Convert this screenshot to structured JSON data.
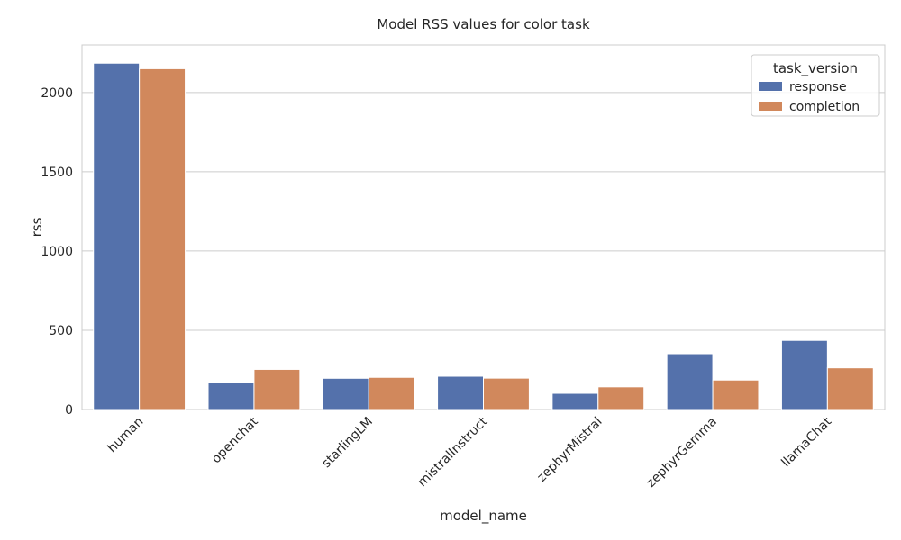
{
  "chart_data": {
    "type": "bar",
    "title": "Model RSS values for color task",
    "xlabel": "model_name",
    "ylabel": "rss",
    "categories": [
      "human",
      "openchat",
      "starlingLM",
      "mistralInstruct",
      "zephyrMistral",
      "zephyrGemma",
      "llamaChat"
    ],
    "series": [
      {
        "name": "response",
        "color": "#5471ab",
        "values": [
          2185,
          170,
          197,
          210,
          102,
          352,
          436
        ]
      },
      {
        "name": "completion",
        "color": "#d1885c",
        "values": [
          2150,
          253,
          203,
          198,
          143,
          186,
          263
        ]
      }
    ],
    "ylim": [
      0,
      2300
    ],
    "yticks": [
      0,
      500,
      1000,
      1500,
      2000
    ],
    "grid": true,
    "legend_title": "task_version",
    "legend_position": "top-right",
    "xtick_rotation": 45
  }
}
